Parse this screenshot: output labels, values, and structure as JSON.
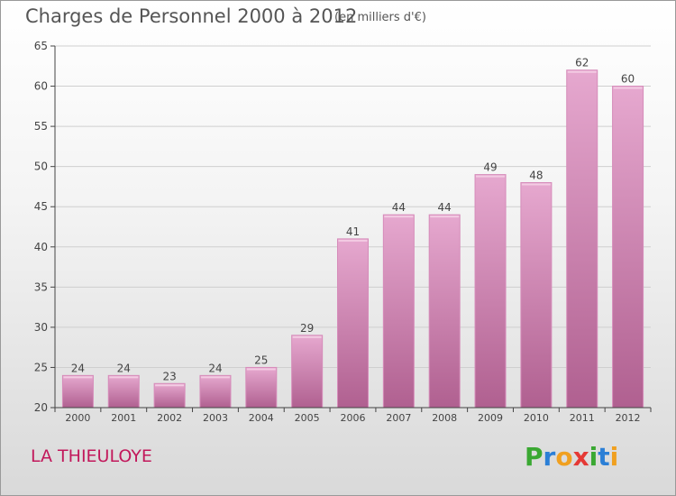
{
  "header": {
    "title": "Charges de Personnel 2000 à 2012",
    "subtitle": "(en milliers d'€)"
  },
  "footer": {
    "commune": "LA THIEULOYE",
    "logo_text": "Proxiti"
  },
  "colors": {
    "bar_light": "#e6a8cf",
    "bar_dark": "#b06090",
    "axis": "#444444",
    "grid": "#cfcfcf",
    "title": "#555555",
    "commune": "#c2185b"
  },
  "chart_data": {
    "type": "bar",
    "title": "Charges de Personnel 2000 à 2012",
    "subtitle": "(en milliers d'€)",
    "categories": [
      "2000",
      "2001",
      "2002",
      "2003",
      "2004",
      "2005",
      "2006",
      "2007",
      "2008",
      "2009",
      "2010",
      "2011",
      "2012"
    ],
    "values": [
      24,
      24,
      23,
      24,
      25,
      29,
      41,
      44,
      44,
      49,
      48,
      62,
      60
    ],
    "ylim": [
      20,
      65
    ],
    "yticks": [
      20,
      25,
      30,
      35,
      40,
      45,
      50,
      55,
      60,
      65
    ],
    "grid": true,
    "xlabel": "",
    "ylabel": ""
  }
}
